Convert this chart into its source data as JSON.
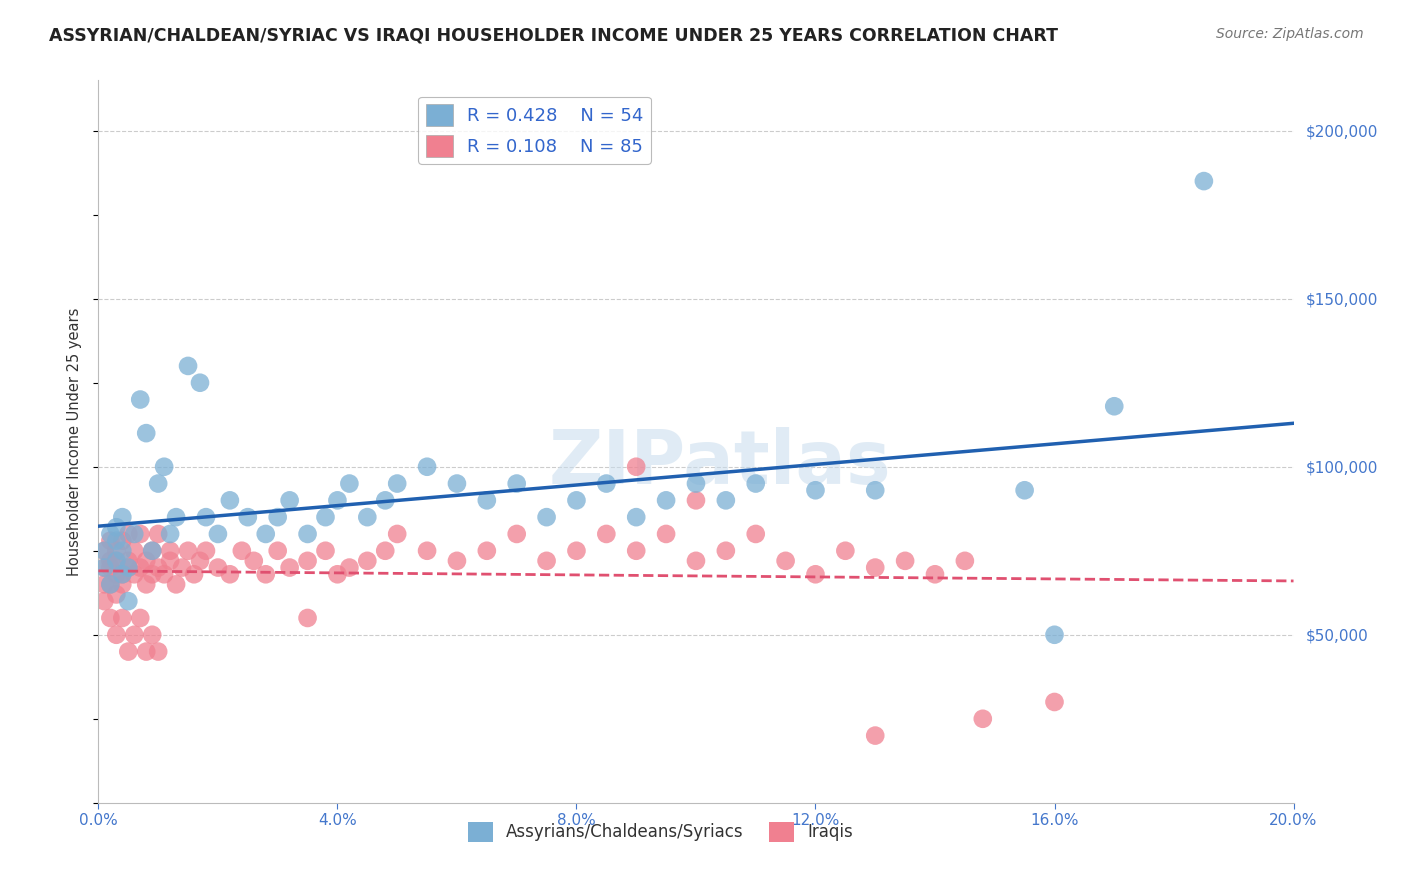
{
  "title": "ASSYRIAN/CHALDEAN/SYRIAC VS IRAQI HOUSEHOLDER INCOME UNDER 25 YEARS CORRELATION CHART",
  "source": "Source: ZipAtlas.com",
  "ylabel": "Householder Income Under 25 years",
  "xlim": [
    0.0,
    0.2
  ],
  "ylim": [
    0,
    215000
  ],
  "xticks": [
    0.0,
    0.04,
    0.08,
    0.12,
    0.16,
    0.2
  ],
  "yticks": [
    0,
    50000,
    100000,
    150000,
    200000
  ],
  "blue_R": 0.428,
  "blue_N": 54,
  "pink_R": 0.108,
  "pink_N": 85,
  "blue_label": "Assyrians/Chaldeans/Syriacs",
  "pink_label": "Iraqis",
  "blue_color": "#7bafd4",
  "pink_color": "#f08090",
  "blue_line_color": "#2060b0",
  "pink_line_color": "#e05070",
  "grid_color": "#cccccc",
  "blue_x": [
    0.001,
    0.001,
    0.002,
    0.002,
    0.003,
    0.003,
    0.003,
    0.004,
    0.004,
    0.004,
    0.005,
    0.005,
    0.006,
    0.007,
    0.008,
    0.009,
    0.01,
    0.011,
    0.012,
    0.013,
    0.015,
    0.017,
    0.018,
    0.02,
    0.022,
    0.025,
    0.028,
    0.03,
    0.032,
    0.035,
    0.038,
    0.04,
    0.042,
    0.045,
    0.048,
    0.05,
    0.055,
    0.06,
    0.065,
    0.07,
    0.075,
    0.08,
    0.085,
    0.09,
    0.095,
    0.1,
    0.105,
    0.11,
    0.12,
    0.13,
    0.155,
    0.16,
    0.17,
    0.185
  ],
  "blue_y": [
    75000,
    70000,
    80000,
    65000,
    72000,
    78000,
    82000,
    68000,
    75000,
    85000,
    60000,
    70000,
    80000,
    120000,
    110000,
    75000,
    95000,
    100000,
    80000,
    85000,
    130000,
    125000,
    85000,
    80000,
    90000,
    85000,
    80000,
    85000,
    90000,
    80000,
    85000,
    90000,
    95000,
    85000,
    90000,
    95000,
    100000,
    95000,
    90000,
    95000,
    85000,
    90000,
    95000,
    85000,
    90000,
    95000,
    90000,
    95000,
    93000,
    93000,
    93000,
    50000,
    118000,
    185000
  ],
  "pink_x": [
    0.001,
    0.001,
    0.001,
    0.001,
    0.002,
    0.002,
    0.002,
    0.002,
    0.003,
    0.003,
    0.003,
    0.003,
    0.004,
    0.004,
    0.004,
    0.005,
    0.005,
    0.005,
    0.006,
    0.006,
    0.007,
    0.007,
    0.008,
    0.008,
    0.009,
    0.009,
    0.01,
    0.01,
    0.011,
    0.012,
    0.012,
    0.013,
    0.014,
    0.015,
    0.016,
    0.017,
    0.018,
    0.02,
    0.022,
    0.024,
    0.026,
    0.028,
    0.03,
    0.032,
    0.035,
    0.038,
    0.04,
    0.042,
    0.045,
    0.048,
    0.05,
    0.055,
    0.06,
    0.065,
    0.07,
    0.075,
    0.08,
    0.085,
    0.09,
    0.095,
    0.1,
    0.105,
    0.11,
    0.115,
    0.12,
    0.125,
    0.13,
    0.135,
    0.14,
    0.145,
    0.002,
    0.003,
    0.004,
    0.005,
    0.006,
    0.007,
    0.008,
    0.009,
    0.01,
    0.035,
    0.1,
    0.09,
    0.13,
    0.148,
    0.16
  ],
  "pink_y": [
    65000,
    70000,
    75000,
    60000,
    70000,
    72000,
    78000,
    65000,
    68000,
    72000,
    75000,
    62000,
    68000,
    78000,
    65000,
    70000,
    80000,
    72000,
    68000,
    75000,
    80000,
    70000,
    65000,
    72000,
    68000,
    75000,
    80000,
    70000,
    68000,
    75000,
    72000,
    65000,
    70000,
    75000,
    68000,
    72000,
    75000,
    70000,
    68000,
    75000,
    72000,
    68000,
    75000,
    70000,
    72000,
    75000,
    68000,
    70000,
    72000,
    75000,
    80000,
    75000,
    72000,
    75000,
    80000,
    72000,
    75000,
    80000,
    75000,
    80000,
    72000,
    75000,
    80000,
    72000,
    68000,
    75000,
    70000,
    72000,
    68000,
    72000,
    55000,
    50000,
    55000,
    45000,
    50000,
    55000,
    45000,
    50000,
    45000,
    55000,
    90000,
    100000,
    20000,
    25000,
    30000
  ]
}
